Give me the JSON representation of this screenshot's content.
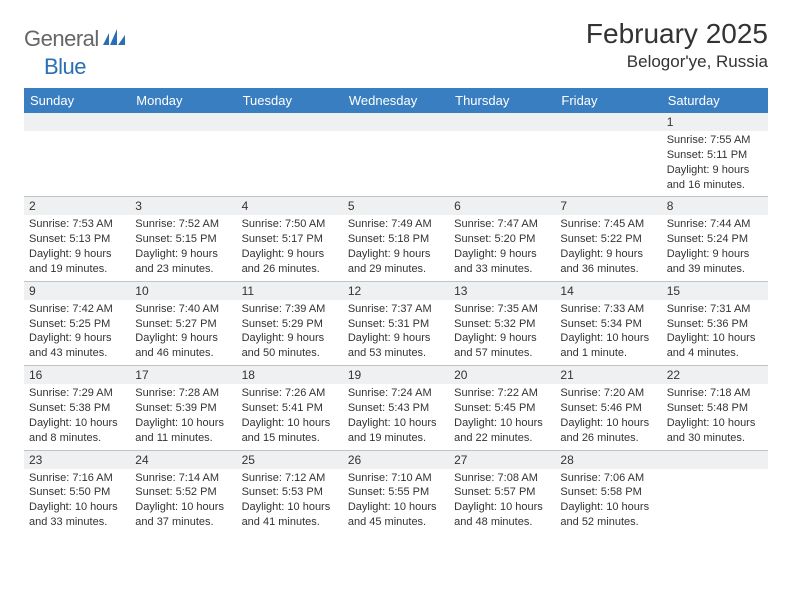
{
  "logo": {
    "word1": "General",
    "word2": "Blue"
  },
  "title": "February 2025",
  "location": "Belogor'ye, Russia",
  "colors": {
    "header_bg": "#3a7ec2",
    "header_fg": "#ffffff",
    "band_bg": "#eef0f1",
    "rule": "#bfc4c9",
    "page_bg": "#ffffff",
    "text": "#333333",
    "logo_gray": "#666666",
    "logo_blue": "#2a6fb5"
  },
  "weekdays": [
    "Sunday",
    "Monday",
    "Tuesday",
    "Wednesday",
    "Thursday",
    "Friday",
    "Saturday"
  ],
  "weeks": [
    [
      {
        "n": ""
      },
      {
        "n": ""
      },
      {
        "n": ""
      },
      {
        "n": ""
      },
      {
        "n": ""
      },
      {
        "n": ""
      },
      {
        "n": "1",
        "sr": "Sunrise: 7:55 AM",
        "ss": "Sunset: 5:11 PM",
        "dl": "Daylight: 9 hours and 16 minutes."
      }
    ],
    [
      {
        "n": "2",
        "sr": "Sunrise: 7:53 AM",
        "ss": "Sunset: 5:13 PM",
        "dl": "Daylight: 9 hours and 19 minutes."
      },
      {
        "n": "3",
        "sr": "Sunrise: 7:52 AM",
        "ss": "Sunset: 5:15 PM",
        "dl": "Daylight: 9 hours and 23 minutes."
      },
      {
        "n": "4",
        "sr": "Sunrise: 7:50 AM",
        "ss": "Sunset: 5:17 PM",
        "dl": "Daylight: 9 hours and 26 minutes."
      },
      {
        "n": "5",
        "sr": "Sunrise: 7:49 AM",
        "ss": "Sunset: 5:18 PM",
        "dl": "Daylight: 9 hours and 29 minutes."
      },
      {
        "n": "6",
        "sr": "Sunrise: 7:47 AM",
        "ss": "Sunset: 5:20 PM",
        "dl": "Daylight: 9 hours and 33 minutes."
      },
      {
        "n": "7",
        "sr": "Sunrise: 7:45 AM",
        "ss": "Sunset: 5:22 PM",
        "dl": "Daylight: 9 hours and 36 minutes."
      },
      {
        "n": "8",
        "sr": "Sunrise: 7:44 AM",
        "ss": "Sunset: 5:24 PM",
        "dl": "Daylight: 9 hours and 39 minutes."
      }
    ],
    [
      {
        "n": "9",
        "sr": "Sunrise: 7:42 AM",
        "ss": "Sunset: 5:25 PM",
        "dl": "Daylight: 9 hours and 43 minutes."
      },
      {
        "n": "10",
        "sr": "Sunrise: 7:40 AM",
        "ss": "Sunset: 5:27 PM",
        "dl": "Daylight: 9 hours and 46 minutes."
      },
      {
        "n": "11",
        "sr": "Sunrise: 7:39 AM",
        "ss": "Sunset: 5:29 PM",
        "dl": "Daylight: 9 hours and 50 minutes."
      },
      {
        "n": "12",
        "sr": "Sunrise: 7:37 AM",
        "ss": "Sunset: 5:31 PM",
        "dl": "Daylight: 9 hours and 53 minutes."
      },
      {
        "n": "13",
        "sr": "Sunrise: 7:35 AM",
        "ss": "Sunset: 5:32 PM",
        "dl": "Daylight: 9 hours and 57 minutes."
      },
      {
        "n": "14",
        "sr": "Sunrise: 7:33 AM",
        "ss": "Sunset: 5:34 PM",
        "dl": "Daylight: 10 hours and 1 minute."
      },
      {
        "n": "15",
        "sr": "Sunrise: 7:31 AM",
        "ss": "Sunset: 5:36 PM",
        "dl": "Daylight: 10 hours and 4 minutes."
      }
    ],
    [
      {
        "n": "16",
        "sr": "Sunrise: 7:29 AM",
        "ss": "Sunset: 5:38 PM",
        "dl": "Daylight: 10 hours and 8 minutes."
      },
      {
        "n": "17",
        "sr": "Sunrise: 7:28 AM",
        "ss": "Sunset: 5:39 PM",
        "dl": "Daylight: 10 hours and 11 minutes."
      },
      {
        "n": "18",
        "sr": "Sunrise: 7:26 AM",
        "ss": "Sunset: 5:41 PM",
        "dl": "Daylight: 10 hours and 15 minutes."
      },
      {
        "n": "19",
        "sr": "Sunrise: 7:24 AM",
        "ss": "Sunset: 5:43 PM",
        "dl": "Daylight: 10 hours and 19 minutes."
      },
      {
        "n": "20",
        "sr": "Sunrise: 7:22 AM",
        "ss": "Sunset: 5:45 PM",
        "dl": "Daylight: 10 hours and 22 minutes."
      },
      {
        "n": "21",
        "sr": "Sunrise: 7:20 AM",
        "ss": "Sunset: 5:46 PM",
        "dl": "Daylight: 10 hours and 26 minutes."
      },
      {
        "n": "22",
        "sr": "Sunrise: 7:18 AM",
        "ss": "Sunset: 5:48 PM",
        "dl": "Daylight: 10 hours and 30 minutes."
      }
    ],
    [
      {
        "n": "23",
        "sr": "Sunrise: 7:16 AM",
        "ss": "Sunset: 5:50 PM",
        "dl": "Daylight: 10 hours and 33 minutes."
      },
      {
        "n": "24",
        "sr": "Sunrise: 7:14 AM",
        "ss": "Sunset: 5:52 PM",
        "dl": "Daylight: 10 hours and 37 minutes."
      },
      {
        "n": "25",
        "sr": "Sunrise: 7:12 AM",
        "ss": "Sunset: 5:53 PM",
        "dl": "Daylight: 10 hours and 41 minutes."
      },
      {
        "n": "26",
        "sr": "Sunrise: 7:10 AM",
        "ss": "Sunset: 5:55 PM",
        "dl": "Daylight: 10 hours and 45 minutes."
      },
      {
        "n": "27",
        "sr": "Sunrise: 7:08 AM",
        "ss": "Sunset: 5:57 PM",
        "dl": "Daylight: 10 hours and 48 minutes."
      },
      {
        "n": "28",
        "sr": "Sunrise: 7:06 AM",
        "ss": "Sunset: 5:58 PM",
        "dl": "Daylight: 10 hours and 52 minutes."
      },
      {
        "n": ""
      }
    ]
  ]
}
